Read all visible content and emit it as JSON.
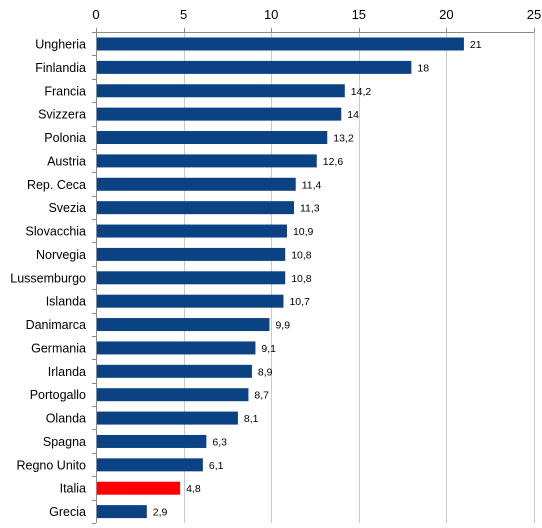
{
  "chart_data": {
    "type": "bar",
    "orientation": "horizontal",
    "categories": [
      "Ungheria",
      "Finlandia",
      "Francia",
      "Svizzera",
      "Polonia",
      "Austria",
      "Rep. Ceca",
      "Svezia",
      "Slovacchia",
      "Norvegia",
      "Lussemburgo",
      "Islanda",
      "Danimarca",
      "Germania",
      "Irlanda",
      "Portogallo",
      "Olanda",
      "Spagna",
      "Regno Unito",
      "Italia",
      "Grecia"
    ],
    "values": [
      21,
      18,
      14.2,
      14,
      13.2,
      12.6,
      11.4,
      11.3,
      10.9,
      10.8,
      10.8,
      10.7,
      9.9,
      9.1,
      8.9,
      8.7,
      8.1,
      6.3,
      6.1,
      4.8,
      2.9
    ],
    "value_labels": [
      "21",
      "18",
      "14,2",
      "14",
      "13,2",
      "12,6",
      "11,4",
      "11,3",
      "10,9",
      "10,8",
      "10,8",
      "10,7",
      "9,9",
      "9,1",
      "8,9",
      "8,7",
      "8,1",
      "6,3",
      "6,1",
      "4,8",
      "2,9"
    ],
    "highlight": "Italia",
    "xlim": [
      0,
      25
    ],
    "x_ticks": [
      0,
      5,
      10,
      15,
      20,
      25
    ],
    "x_axis_position": "top",
    "grid": "vertical",
    "colors": {
      "bar": "#0b4283",
      "highlight": "#ff0000",
      "highlight_label": "#ff0000",
      "grid": "#c8c8c8",
      "axis": "#8a8a8a"
    }
  }
}
